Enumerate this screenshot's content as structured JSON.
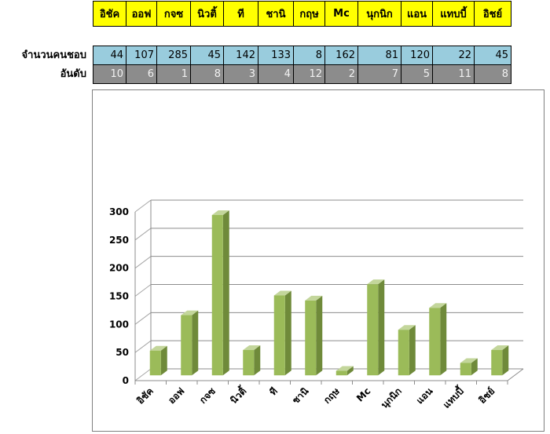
{
  "table": {
    "row_labels": [
      "จำนวนคนชอบ",
      "อันดับ"
    ],
    "headers": [
      "อิชัค",
      "ออฟ",
      "กจซ",
      "นิวติ้",
      "ที",
      "ชานิ",
      "กฤษ",
      "Mc",
      "นุกนิก",
      "แอน",
      "แทบบี้",
      "อิชย์"
    ],
    "counts": [
      "44",
      "107",
      "285",
      "45",
      "142",
      "133",
      "8",
      "162",
      "81",
      "120",
      "22",
      "45"
    ],
    "ranks": [
      "10",
      "6",
      "1",
      "8",
      "3",
      "4",
      "12",
      "2",
      "7",
      "5",
      "11",
      "8"
    ]
  },
  "chart_data": {
    "type": "bar",
    "categories": [
      "อิชัค",
      "ออฟ",
      "กจซ",
      "นิวติ้",
      "ที",
      "ชานิ",
      "กฤษ",
      "Mc",
      "นุกนิก",
      "แอน",
      "แทบบี้",
      "อิชย์"
    ],
    "values": [
      44,
      107,
      285,
      45,
      142,
      133,
      8,
      162,
      81,
      120,
      22,
      45
    ],
    "yticks": [
      "0",
      "50",
      "100",
      "150",
      "200",
      "250",
      "300"
    ],
    "ylim": [
      0,
      300
    ],
    "grid": true,
    "bar_color": "#9bbb59",
    "title": "",
    "xlabel": "",
    "ylabel": ""
  }
}
